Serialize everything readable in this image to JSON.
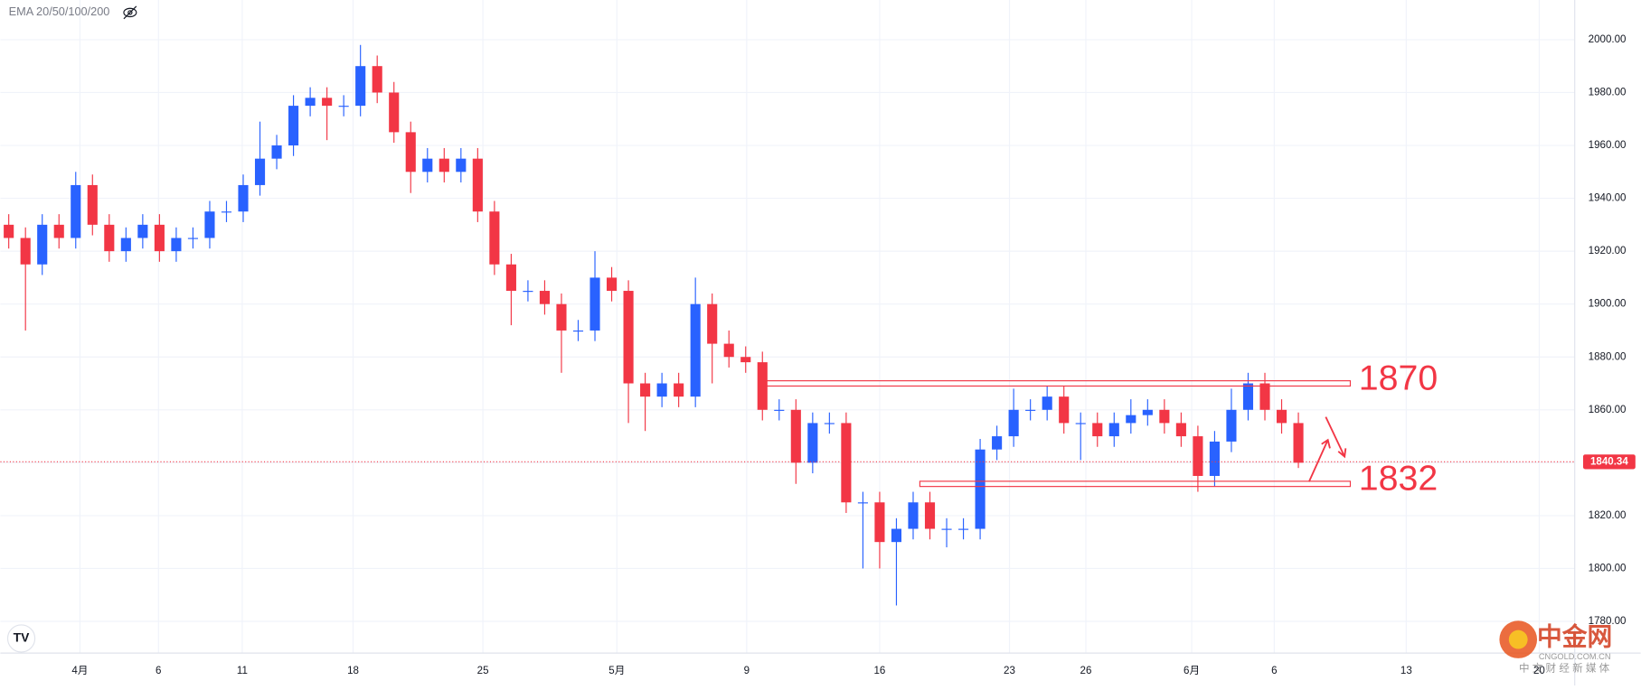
{
  "chart_data": {
    "type": "candlestick",
    "indicator": "EMA 20/50/100/200",
    "x": [
      0.5,
      1.5,
      2.5,
      3.5,
      4.5,
      5.5,
      6.5,
      7.5,
      8.5,
      9.5,
      10.5,
      11.5,
      12.5,
      13.5,
      14.5,
      15.5,
      16.5,
      17.5,
      18.5,
      19.5,
      20.5,
      21.5,
      22.5,
      23.5,
      24.5,
      25.5,
      26.5,
      27.5,
      28.5,
      29.5,
      30.5,
      31.5,
      32.5,
      33.5,
      34.5,
      35.5,
      36.5,
      37.5,
      38.5,
      39.5,
      40.5,
      41.5,
      42.5,
      43.5,
      44.5,
      45.5,
      46.5,
      47.5,
      48.5,
      49.5,
      50.5,
      51.5,
      52.5,
      53.5,
      54.5,
      55.5,
      56.5,
      57.5,
      58.5,
      59.5,
      60.5,
      61.5,
      62.5,
      63.5,
      64.5,
      65.5,
      66.5,
      67.5,
      68.5,
      69.5,
      70.5,
      71.5,
      72.5,
      73.5,
      74.5,
      75.5,
      76.5,
      77.5
    ],
    "open": [
      1930,
      1925,
      1915,
      1930,
      1925,
      1945,
      1930,
      1920,
      1925,
      1930,
      1920,
      1925,
      1925,
      1935,
      1935,
      1945,
      1955,
      1960,
      1975,
      1978,
      1975,
      1975,
      1990,
      1980,
      1965,
      1950,
      1955,
      1950,
      1955,
      1935,
      1915,
      1905,
      1905,
      1900,
      1890,
      1890,
      1910,
      1905,
      1870,
      1865,
      1870,
      1865,
      1900,
      1885,
      1880,
      1878,
      1860,
      1860,
      1840,
      1855,
      1855,
      1825,
      1825,
      1810,
      1815,
      1825,
      1815,
      1815,
      1815,
      1845,
      1850,
      1860,
      1860,
      1865,
      1855,
      1855,
      1850,
      1855,
      1858,
      1860,
      1855,
      1850,
      1835,
      1848,
      1860,
      1870,
      1860,
      1855
    ],
    "high": [
      1934,
      1929,
      1934,
      1934,
      1950,
      1949,
      1934,
      1929,
      1934,
      1934,
      1929,
      1929,
      1939,
      1939,
      1949,
      1969,
      1964,
      1979,
      1982,
      1982,
      1979,
      1998,
      1994,
      1984,
      1969,
      1959,
      1959,
      1959,
      1959,
      1939,
      1919,
      1909,
      1909,
      1904,
      1894,
      1920,
      1914,
      1909,
      1874,
      1874,
      1874,
      1910,
      1904,
      1890,
      1884,
      1882,
      1864,
      1864,
      1859,
      1859,
      1859,
      1829,
      1829,
      1819,
      1829,
      1829,
      1819,
      1819,
      1849,
      1854,
      1868,
      1864,
      1869,
      1869,
      1859,
      1859,
      1859,
      1864,
      1864,
      1864,
      1859,
      1854,
      1852,
      1868,
      1874,
      1874,
      1864,
      1859
    ],
    "low": [
      1921,
      1890,
      1911,
      1921,
      1921,
      1926,
      1916,
      1916,
      1921,
      1916,
      1916,
      1921,
      1921,
      1931,
      1931,
      1941,
      1951,
      1956,
      1971,
      1962,
      1971,
      1971,
      1976,
      1961,
      1942,
      1946,
      1946,
      1946,
      1931,
      1911,
      1892,
      1901,
      1896,
      1874,
      1886,
      1886,
      1901,
      1855,
      1852,
      1861,
      1861,
      1861,
      1870,
      1876,
      1874,
      1856,
      1856,
      1832,
      1836,
      1851,
      1821,
      1800,
      1800,
      1786,
      1811,
      1811,
      1808,
      1811,
      1811,
      1841,
      1846,
      1856,
      1856,
      1851,
      1841,
      1846,
      1846,
      1851,
      1854,
      1851,
      1846,
      1829,
      1831,
      1844,
      1856,
      1856,
      1851,
      1838
    ],
    "close": [
      1925,
      1915,
      1930,
      1925,
      1945,
      1930,
      1920,
      1925,
      1930,
      1920,
      1925,
      1925,
      1935,
      1935,
      1945,
      1955,
      1960,
      1975,
      1978,
      1975,
      1975,
      1990,
      1980,
      1965,
      1950,
      1955,
      1950,
      1955,
      1935,
      1915,
      1905,
      1905,
      1900,
      1890,
      1890,
      1910,
      1905,
      1870,
      1865,
      1870,
      1865,
      1900,
      1885,
      1880,
      1878,
      1860,
      1860,
      1840,
      1855,
      1855,
      1825,
      1825,
      1810,
      1815,
      1825,
      1815,
      1815,
      1815,
      1845,
      1850,
      1860,
      1860,
      1865,
      1855,
      1855,
      1850,
      1855,
      1858,
      1860,
      1855,
      1850,
      1835,
      1848,
      1860,
      1870,
      1860,
      1855,
      1840
    ],
    "up_color": "#2962ff",
    "down_color": "#f23645",
    "xlim": [
      0,
      94
    ],
    "ylim": [
      1768,
      2015
    ],
    "xticks": [
      {
        "value": 4.75,
        "label": "4月"
      },
      {
        "value": 9.44,
        "label": "6"
      },
      {
        "value": 14.44,
        "label": "11"
      },
      {
        "value": 21.06,
        "label": "18"
      },
      {
        "value": 28.81,
        "label": "25"
      },
      {
        "value": 36.81,
        "label": "5月"
      },
      {
        "value": 44.56,
        "label": "9"
      },
      {
        "value": 52.5,
        "label": "16"
      },
      {
        "value": 60.25,
        "label": "23"
      },
      {
        "value": 64.81,
        "label": "26"
      },
      {
        "value": 71.13,
        "label": "6月"
      },
      {
        "value": 76.06,
        "label": "6"
      },
      {
        "value": 83.94,
        "label": "13"
      },
      {
        "value": 91.88,
        "label": "20"
      }
    ],
    "yticks": [
      {
        "value": 1780,
        "label": "1780.00"
      },
      {
        "value": 1800,
        "label": "1800.00"
      },
      {
        "value": 1820,
        "label": "1820.00"
      },
      {
        "value": 1840,
        "label": "1840.00"
      },
      {
        "value": 1860,
        "label": "1860.00"
      },
      {
        "value": 1880,
        "label": "1880.00"
      },
      {
        "value": 1900,
        "label": "1900.00"
      },
      {
        "value": 1920,
        "label": "1920.00"
      },
      {
        "value": 1940,
        "label": "1940.00"
      },
      {
        "value": 1960,
        "label": "1960.00"
      },
      {
        "value": 1980,
        "label": "1980.00"
      },
      {
        "value": 2000,
        "label": "2000.00"
      }
    ],
    "grid": true,
    "last_price": 1840.34,
    "levels": [
      {
        "value": 1870,
        "x_range": [
          45.4,
          80.6
        ]
      },
      {
        "value": 1832,
        "x_range": [
          54.9,
          80.6
        ]
      }
    ],
    "level_color": "#f23645"
  },
  "watermark": {
    "brand": "中金网",
    "site": "CNGOLD.COM.CN",
    "slogan": "中 文 财 经 新 媒 体"
  }
}
